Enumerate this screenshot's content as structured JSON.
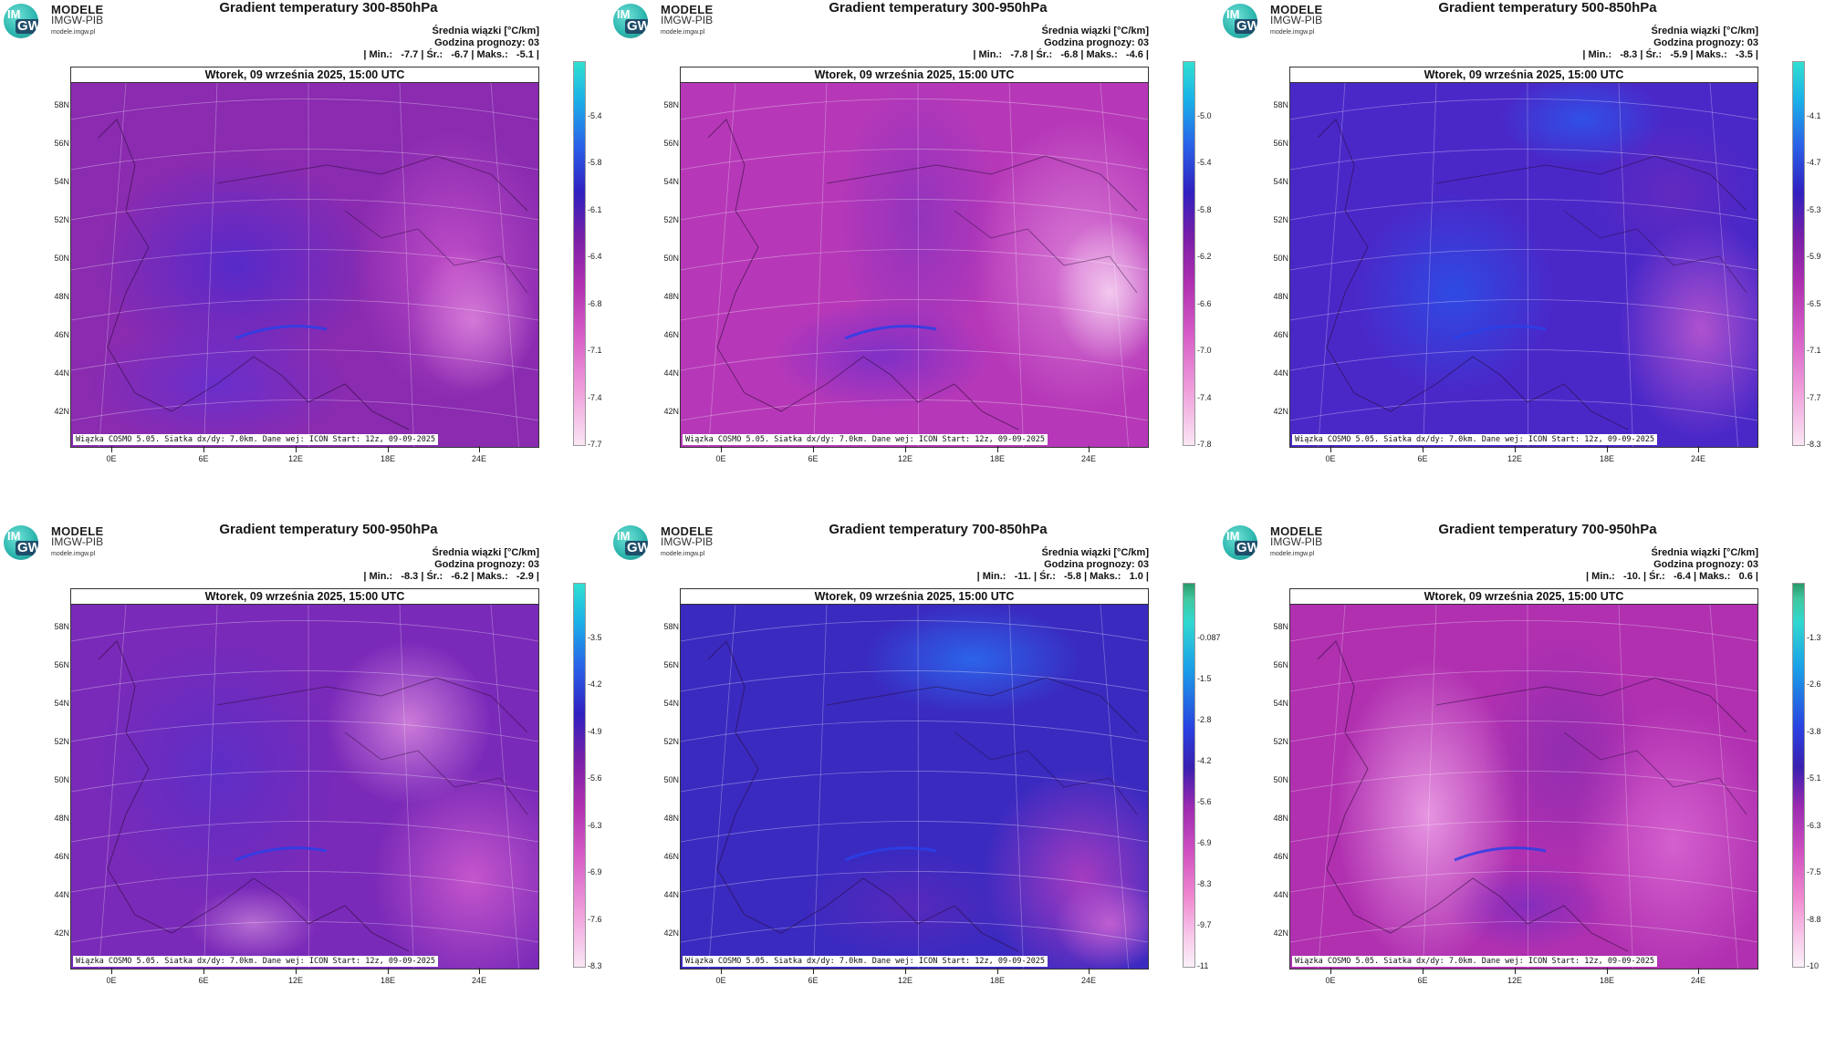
{
  "logo": {
    "line1": "MODELE",
    "line2": "IMGW-PIB",
    "line3": "modele.imgw.pl",
    "im": "IM",
    "gw": "GW"
  },
  "date": "Wtorek, 09 września 2025, 15:00 UTC",
  "credit": "Wiązka COSMO 5.05. Siatka dx/dy: 7.0km. Dane wej: ICON Start: 12z, 09-09-2025",
  "meta_label": "Średnia wiązki [°C/km]",
  "forecast_hour": "Godzina prognozy: 03",
  "lat_labels": [
    "58N",
    "56N",
    "54N",
    "52N",
    "50N",
    "48N",
    "46N",
    "44N",
    "42N"
  ],
  "lon_labels": [
    "0E",
    "6E",
    "12E",
    "18E",
    "24E"
  ],
  "colors": {
    "magenta": "#b030b0",
    "purple": "#7a1fa8",
    "blue": "#3a2ad8",
    "pink": "#f2a6e6",
    "cyan": "#2ad6c8"
  },
  "panels": [
    {
      "title": "Gradient temperatury 300-850hPa",
      "stats": "| Min.:   -7.7 | Śr.:   -6.7 | Maks.:   -5.1 |",
      "cbar": [
        "-5.4",
        "-5.8",
        "-6.1",
        "-6.4",
        "-6.8",
        "-7.1",
        "-7.4",
        "-7.7"
      ],
      "style": "a"
    },
    {
      "title": "Gradient temperatury 300-950hPa",
      "stats": "| Min.:   -7.8 | Śr.:   -6.8 | Maks.:   -4.6 |",
      "cbar": [
        "-5.0",
        "-5.4",
        "-5.8",
        "-6.2",
        "-6.6",
        "-7.0",
        "-7.4",
        "-7.8"
      ],
      "style": "b"
    },
    {
      "title": "Gradient temperatury 500-850hPa",
      "stats": "| Min.:   -8.3 | Śr.:   -5.9 | Maks.:   -3.5 |",
      "cbar": [
        "-4.1",
        "-4.7",
        "-5.3",
        "-5.9",
        "-6.5",
        "-7.1",
        "-7.7",
        "-8.3"
      ],
      "style": "c"
    },
    {
      "title": "Gradient temperatury 500-950hPa",
      "stats": "| Min.:   -8.3 | Śr.:   -6.2 | Maks.:   -2.9 |",
      "cbar": [
        "-3.5",
        "-4.2",
        "-4.9",
        "-5.6",
        "-6.3",
        "-6.9",
        "-7.6",
        "-8.3"
      ],
      "style": "d"
    },
    {
      "title": "Gradient temperatury 700-850hPa",
      "stats": "| Min.:   -11. | Śr.:   -5.8 | Maks.:   1.0 |",
      "cbar": [
        "-0.087",
        "-1.5",
        "-2.8",
        "-4.2",
        "-5.6",
        "-6.9",
        "-8.3",
        "-9.7",
        "-11"
      ],
      "style": "e"
    },
    {
      "title": "Gradient temperatury 700-950hPa",
      "stats": "| Min.:   -10. | Śr.:   -6.4 | Maks.:   0.6 |",
      "cbar": [
        "-1.3",
        "-2.6",
        "-3.8",
        "-5.1",
        "-6.3",
        "-7.5",
        "-8.8",
        "-10"
      ],
      "style": "f"
    }
  ]
}
